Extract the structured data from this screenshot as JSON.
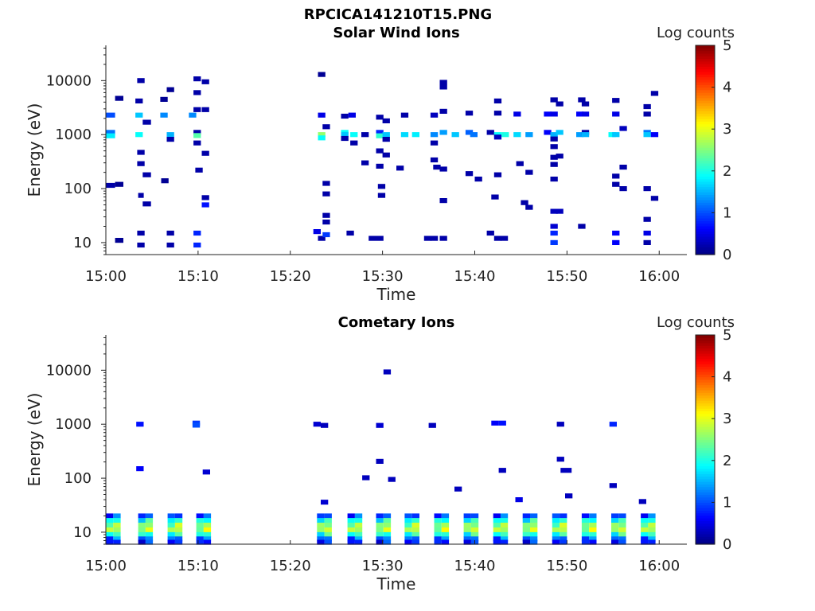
{
  "figure_title": "RPCICA141210T15.PNG",
  "chart_data": [
    {
      "type": "heatmap",
      "title": "Solar Wind Ions",
      "xlabel": "Time",
      "ylabel": "Energy (eV)",
      "x_ticks": [
        "15:00",
        "15:10",
        "15:20",
        "15:30",
        "15:40",
        "15:50",
        "16:00"
      ],
      "y_ticks": [
        "10",
        "100",
        "1000",
        "10000"
      ],
      "y_scale": "log",
      "x_range_minutes": [
        0,
        63
      ],
      "y_range_ev": [
        6,
        45000
      ],
      "colorbar": {
        "label": "Log counts",
        "ticks": [
          "0",
          "1",
          "2",
          "3",
          "4",
          "5"
        ],
        "range": [
          0,
          5
        ],
        "colormap": "jet"
      },
      "cells": [
        [
          0.0,
          1.0,
          2300,
          1.0
        ],
        [
          0.0,
          1.0,
          1100,
          1.2
        ],
        [
          0.0,
          1.0,
          950,
          1.8
        ],
        [
          0.0,
          1.0,
          115,
          0.2
        ],
        [
          1.0,
          1.9,
          4700,
          0.1
        ],
        [
          1.0,
          1.9,
          120,
          0.1
        ],
        [
          1.0,
          1.9,
          11,
          0.1
        ],
        [
          3.2,
          4.0,
          2300,
          1.6
        ],
        [
          3.2,
          4.0,
          4200,
          0.2
        ],
        [
          3.2,
          4.0,
          1000,
          1.9
        ],
        [
          3.4,
          4.2,
          10000,
          0.2
        ],
        [
          3.4,
          4.2,
          470,
          0.2
        ],
        [
          3.4,
          4.2,
          290,
          0.2
        ],
        [
          3.5,
          4.1,
          75,
          0.2
        ],
        [
          3.4,
          4.2,
          15,
          0.2
        ],
        [
          3.4,
          4.2,
          9,
          0.2
        ],
        [
          4.0,
          4.9,
          1700,
          0.2
        ],
        [
          4.0,
          4.9,
          180,
          0.2
        ],
        [
          4.0,
          4.9,
          52,
          0.2
        ],
        [
          5.9,
          6.7,
          4500,
          0.1
        ],
        [
          5.9,
          6.7,
          2300,
          1.3
        ],
        [
          6.6,
          7.4,
          6800,
          0.1
        ],
        [
          6.6,
          7.4,
          1000,
          1.5
        ],
        [
          6.6,
          7.4,
          820,
          0.2
        ],
        [
          6.6,
          7.4,
          15,
          0.2
        ],
        [
          6.6,
          7.4,
          9,
          0.2
        ],
        [
          6.0,
          6.8,
          140,
          0.1
        ],
        [
          9.0,
          9.8,
          2300,
          1.3
        ],
        [
          9.5,
          10.3,
          1100,
          0.2
        ],
        [
          9.5,
          10.3,
          960,
          2.3
        ],
        [
          9.5,
          10.3,
          700,
          0.2
        ],
        [
          9.5,
          10.3,
          15,
          0.8
        ],
        [
          9.5,
          10.3,
          9,
          0.8
        ],
        [
          9.5,
          10.3,
          10800,
          0.2
        ],
        [
          9.5,
          10.3,
          6000,
          0.2
        ],
        [
          9.5,
          10.3,
          2900,
          0.2
        ],
        [
          9.7,
          10.5,
          220,
          0.2
        ],
        [
          10.4,
          11.2,
          9500,
          0.2
        ],
        [
          10.4,
          11.2,
          2900,
          0.2
        ],
        [
          10.4,
          11.2,
          450,
          0.2
        ],
        [
          10.4,
          11.2,
          50,
          0.7
        ],
        [
          10.4,
          11.2,
          68,
          0.2
        ],
        [
          22.5,
          23.3,
          16,
          0.5
        ],
        [
          23.0,
          23.8,
          12,
          0.2
        ],
        [
          23.5,
          24.3,
          14,
          0.9
        ],
        [
          23.5,
          24.3,
          24,
          0.2
        ],
        [
          23.0,
          23.8,
          13000,
          0.1
        ],
        [
          23.0,
          23.8,
          2300,
          0.5
        ],
        [
          23.0,
          23.8,
          1000,
          2.6
        ],
        [
          23.0,
          23.8,
          870,
          1.9
        ],
        [
          23.5,
          24.3,
          32,
          0.2
        ],
        [
          23.5,
          24.3,
          1400,
          0.2
        ],
        [
          23.5,
          24.3,
          125,
          0.2
        ],
        [
          23.5,
          24.3,
          80,
          0.2
        ],
        [
          25.5,
          26.3,
          1100,
          1.9
        ],
        [
          25.5,
          26.3,
          1000,
          1.6
        ],
        [
          25.5,
          26.3,
          850,
          0.2
        ],
        [
          25.5,
          26.3,
          2200,
          0.2
        ],
        [
          26.1,
          26.9,
          15,
          0.2
        ],
        [
          26.3,
          27.1,
          2300,
          0.5
        ],
        [
          26.5,
          27.3,
          1000,
          1.9
        ],
        [
          26.5,
          27.3,
          700,
          0.2
        ],
        [
          27.7,
          28.5,
          1000,
          0.2
        ],
        [
          27.7,
          28.5,
          300,
          0.2
        ],
        [
          28.5,
          29.3,
          12,
          0.2
        ],
        [
          29.3,
          30.1,
          12,
          0.2
        ],
        [
          29.3,
          30.1,
          2100,
          0.2
        ],
        [
          29.3,
          30.1,
          1100,
          0.8
        ],
        [
          29.3,
          30.1,
          950,
          2.1
        ],
        [
          29.3,
          30.1,
          500,
          0.2
        ],
        [
          29.3,
          30.1,
          260,
          0.2
        ],
        [
          30.0,
          30.8,
          1800,
          0.2
        ],
        [
          30.0,
          30.8,
          1000,
          1.6
        ],
        [
          30.0,
          30.8,
          820,
          0.2
        ],
        [
          30.0,
          30.8,
          420,
          0.2
        ],
        [
          29.5,
          30.3,
          110,
          0.2
        ],
        [
          29.5,
          30.3,
          75,
          0.2
        ],
        [
          31.5,
          32.3,
          240,
          0.2
        ],
        [
          32.0,
          32.8,
          2300,
          0.2
        ],
        [
          32.0,
          32.8,
          1000,
          1.7
        ],
        [
          33.2,
          34.0,
          1000,
          1.8
        ],
        [
          34.5,
          35.3,
          12,
          0.2
        ],
        [
          35.2,
          36.0,
          12,
          0.2
        ],
        [
          35.2,
          36.0,
          2300,
          0.3
        ],
        [
          35.2,
          36.0,
          1000,
          1.3
        ],
        [
          35.2,
          36.0,
          700,
          0.2
        ],
        [
          35.2,
          36.0,
          340,
          0.2
        ],
        [
          35.5,
          36.3,
          250,
          0.2
        ],
        [
          36.2,
          37.0,
          12,
          0.2
        ],
        [
          36.2,
          37.0,
          1100,
          1.4
        ],
        [
          36.2,
          37.0,
          2700,
          0.2
        ],
        [
          36.2,
          37.0,
          7600,
          0.2
        ],
        [
          36.2,
          37.0,
          9300,
          0.2
        ],
        [
          36.2,
          37.0,
          230,
          0.2
        ],
        [
          36.2,
          37.0,
          60,
          0.2
        ],
        [
          37.5,
          38.3,
          1000,
          1.6
        ],
        [
          39.0,
          39.8,
          2500,
          0.2
        ],
        [
          39.0,
          39.8,
          1100,
          1.1
        ],
        [
          39.0,
          39.8,
          190,
          0.2
        ],
        [
          39.5,
          40.3,
          1000,
          1.2
        ],
        [
          40.0,
          40.8,
          150,
          0.2
        ],
        [
          41.3,
          42.1,
          15,
          0.2
        ],
        [
          41.3,
          42.1,
          1100,
          0.2
        ],
        [
          42.1,
          42.9,
          12,
          0.2
        ],
        [
          42.1,
          42.9,
          4200,
          0.2
        ],
        [
          42.1,
          42.9,
          2500,
          0.2
        ],
        [
          42.1,
          42.9,
          1000,
          1.9
        ],
        [
          42.1,
          42.9,
          900,
          0.3
        ],
        [
          42.1,
          42.9,
          180,
          0.2
        ],
        [
          41.8,
          42.6,
          70,
          0.2
        ],
        [
          42.8,
          43.6,
          12,
          0.2
        ],
        [
          42.9,
          43.7,
          1000,
          2.0
        ],
        [
          44.2,
          45.0,
          2400,
          0.5
        ],
        [
          44.2,
          45.0,
          1000,
          1.7
        ],
        [
          45.5,
          46.3,
          1000,
          1.4
        ],
        [
          44.5,
          45.3,
          290,
          0.2
        ],
        [
          45.5,
          46.3,
          200,
          0.2
        ],
        [
          45.0,
          45.8,
          55,
          0.2
        ],
        [
          45.5,
          46.3,
          45,
          0.2
        ],
        [
          47.5,
          48.3,
          1100,
          0.6
        ],
        [
          47.5,
          48.3,
          2400,
          0.6
        ],
        [
          48.2,
          49.0,
          4400,
          0.2
        ],
        [
          48.2,
          49.0,
          2400,
          0.5
        ],
        [
          48.2,
          49.0,
          1000,
          1.5
        ],
        [
          48.2,
          49.0,
          830,
          0.2
        ],
        [
          48.2,
          49.0,
          600,
          0.2
        ],
        [
          48.2,
          49.0,
          380,
          0.2
        ],
        [
          48.2,
          49.0,
          280,
          0.2
        ],
        [
          48.2,
          49.0,
          150,
          0.2
        ],
        [
          48.2,
          49.0,
          38,
          0.3
        ],
        [
          48.2,
          49.0,
          20,
          0.4
        ],
        [
          48.2,
          49.0,
          15,
          0.8
        ],
        [
          48.2,
          49.0,
          10,
          0.9
        ],
        [
          48.8,
          49.6,
          3700,
          0.2
        ],
        [
          48.8,
          49.6,
          1100,
          1.6
        ],
        [
          48.8,
          49.6,
          400,
          0.2
        ],
        [
          48.8,
          49.6,
          38,
          0.3
        ],
        [
          51.0,
          51.8,
          2400,
          0.6
        ],
        [
          51.0,
          51.8,
          1000,
          1.4
        ],
        [
          51.2,
          52.0,
          4400,
          0.2
        ],
        [
          51.2,
          52.0,
          20,
          0.2
        ],
        [
          51.6,
          52.4,
          1100,
          0.2
        ],
        [
          51.6,
          52.4,
          3700,
          0.2
        ],
        [
          51.6,
          52.4,
          2400,
          0.5
        ],
        [
          51.6,
          52.4,
          1000,
          1.5
        ],
        [
          54.5,
          55.3,
          1000,
          1.9
        ],
        [
          54.9,
          55.7,
          4300,
          0.2
        ],
        [
          54.9,
          55.7,
          2400,
          0.5
        ],
        [
          54.9,
          55.7,
          1000,
          1.6
        ],
        [
          54.9,
          55.7,
          170,
          0.2
        ],
        [
          54.9,
          55.7,
          120,
          0.2
        ],
        [
          54.9,
          55.7,
          15,
          0.6
        ],
        [
          54.9,
          55.7,
          10,
          0.6
        ],
        [
          55.7,
          56.5,
          1300,
          0.3
        ],
        [
          55.7,
          56.5,
          250,
          0.2
        ],
        [
          55.7,
          56.5,
          100,
          0.2
        ],
        [
          58.3,
          59.1,
          1100,
          1.2
        ],
        [
          58.3,
          59.1,
          1000,
          1.6
        ],
        [
          58.3,
          59.1,
          2400,
          0.2
        ],
        [
          58.3,
          59.1,
          3300,
          0.2
        ],
        [
          58.3,
          59.1,
          100,
          0.2
        ],
        [
          58.3,
          59.1,
          27,
          0.2
        ],
        [
          58.3,
          59.1,
          15,
          0.5
        ],
        [
          58.3,
          59.1,
          10,
          0.2
        ],
        [
          59.1,
          59.9,
          5800,
          0.2
        ],
        [
          59.1,
          59.9,
          1000,
          0.6
        ],
        [
          59.1,
          59.9,
          66,
          0.2
        ]
      ]
    },
    {
      "type": "heatmap",
      "title": "Cometary Ions",
      "xlabel": "Time",
      "ylabel": "Energy (eV)",
      "x_ticks": [
        "15:00",
        "15:10",
        "15:20",
        "15:30",
        "15:40",
        "15:50",
        "16:00"
      ],
      "y_ticks": [
        "10",
        "100",
        "1000",
        "10000"
      ],
      "y_scale": "log",
      "x_range_minutes": [
        0,
        63
      ],
      "y_range_ev": [
        6,
        45000
      ],
      "colorbar": {
        "label": "Log counts",
        "ticks": [
          "0",
          "1",
          "2",
          "3",
          "4",
          "5"
        ],
        "range": [
          0,
          5
        ],
        "colormap": "jet"
      },
      "columns_minutes": [
        0.0,
        3.5,
        6.7,
        9.8,
        22.9,
        26.2,
        29.3,
        32.4,
        35.6,
        38.8,
        42.0,
        45.2,
        48.4,
        51.6,
        54.8,
        58.0
      ],
      "column_profile": [
        [
          20,
          0.8
        ],
        [
          16.5,
          1.8
        ],
        [
          13.5,
          2.4
        ],
        [
          11,
          2.6
        ],
        [
          9,
          1.9
        ],
        [
          7.5,
          1.0
        ],
        [
          6.5,
          0.6
        ]
      ],
      "cells": [
        [
          3.3,
          4.1,
          1000,
          0.7
        ],
        [
          3.3,
          4.1,
          150,
          0.6
        ],
        [
          9.4,
          10.2,
          1050,
          0.9
        ],
        [
          9.4,
          10.2,
          960,
          1.0
        ],
        [
          10.5,
          11.3,
          130,
          0.4
        ],
        [
          22.5,
          23.3,
          1000,
          0.4
        ],
        [
          23.3,
          24.1,
          950,
          0.3
        ],
        [
          23.3,
          24.1,
          36,
          0.4
        ],
        [
          27.8,
          28.6,
          102,
          0.3
        ],
        [
          29.3,
          30.1,
          950,
          0.4
        ],
        [
          29.3,
          30.1,
          205,
          0.3
        ],
        [
          30.1,
          30.9,
          9300,
          0.3
        ],
        [
          30.6,
          31.4,
          95,
          0.3
        ],
        [
          35.0,
          35.8,
          950,
          0.3
        ],
        [
          37.8,
          38.6,
          63,
          0.3
        ],
        [
          41.8,
          42.6,
          1050,
          0.6
        ],
        [
          42.6,
          43.4,
          1050,
          0.7
        ],
        [
          42.6,
          43.4,
          140,
          0.3
        ],
        [
          44.4,
          45.2,
          40,
          0.5
        ],
        [
          48.9,
          49.7,
          1000,
          0.3
        ],
        [
          48.9,
          49.7,
          225,
          0.3
        ],
        [
          49.3,
          50.5,
          140,
          0.3
        ],
        [
          49.8,
          50.6,
          47,
          0.3
        ],
        [
          54.6,
          55.4,
          1000,
          0.8
        ],
        [
          54.6,
          55.4,
          73,
          0.3
        ],
        [
          57.8,
          58.6,
          37,
          0.3
        ]
      ]
    }
  ]
}
